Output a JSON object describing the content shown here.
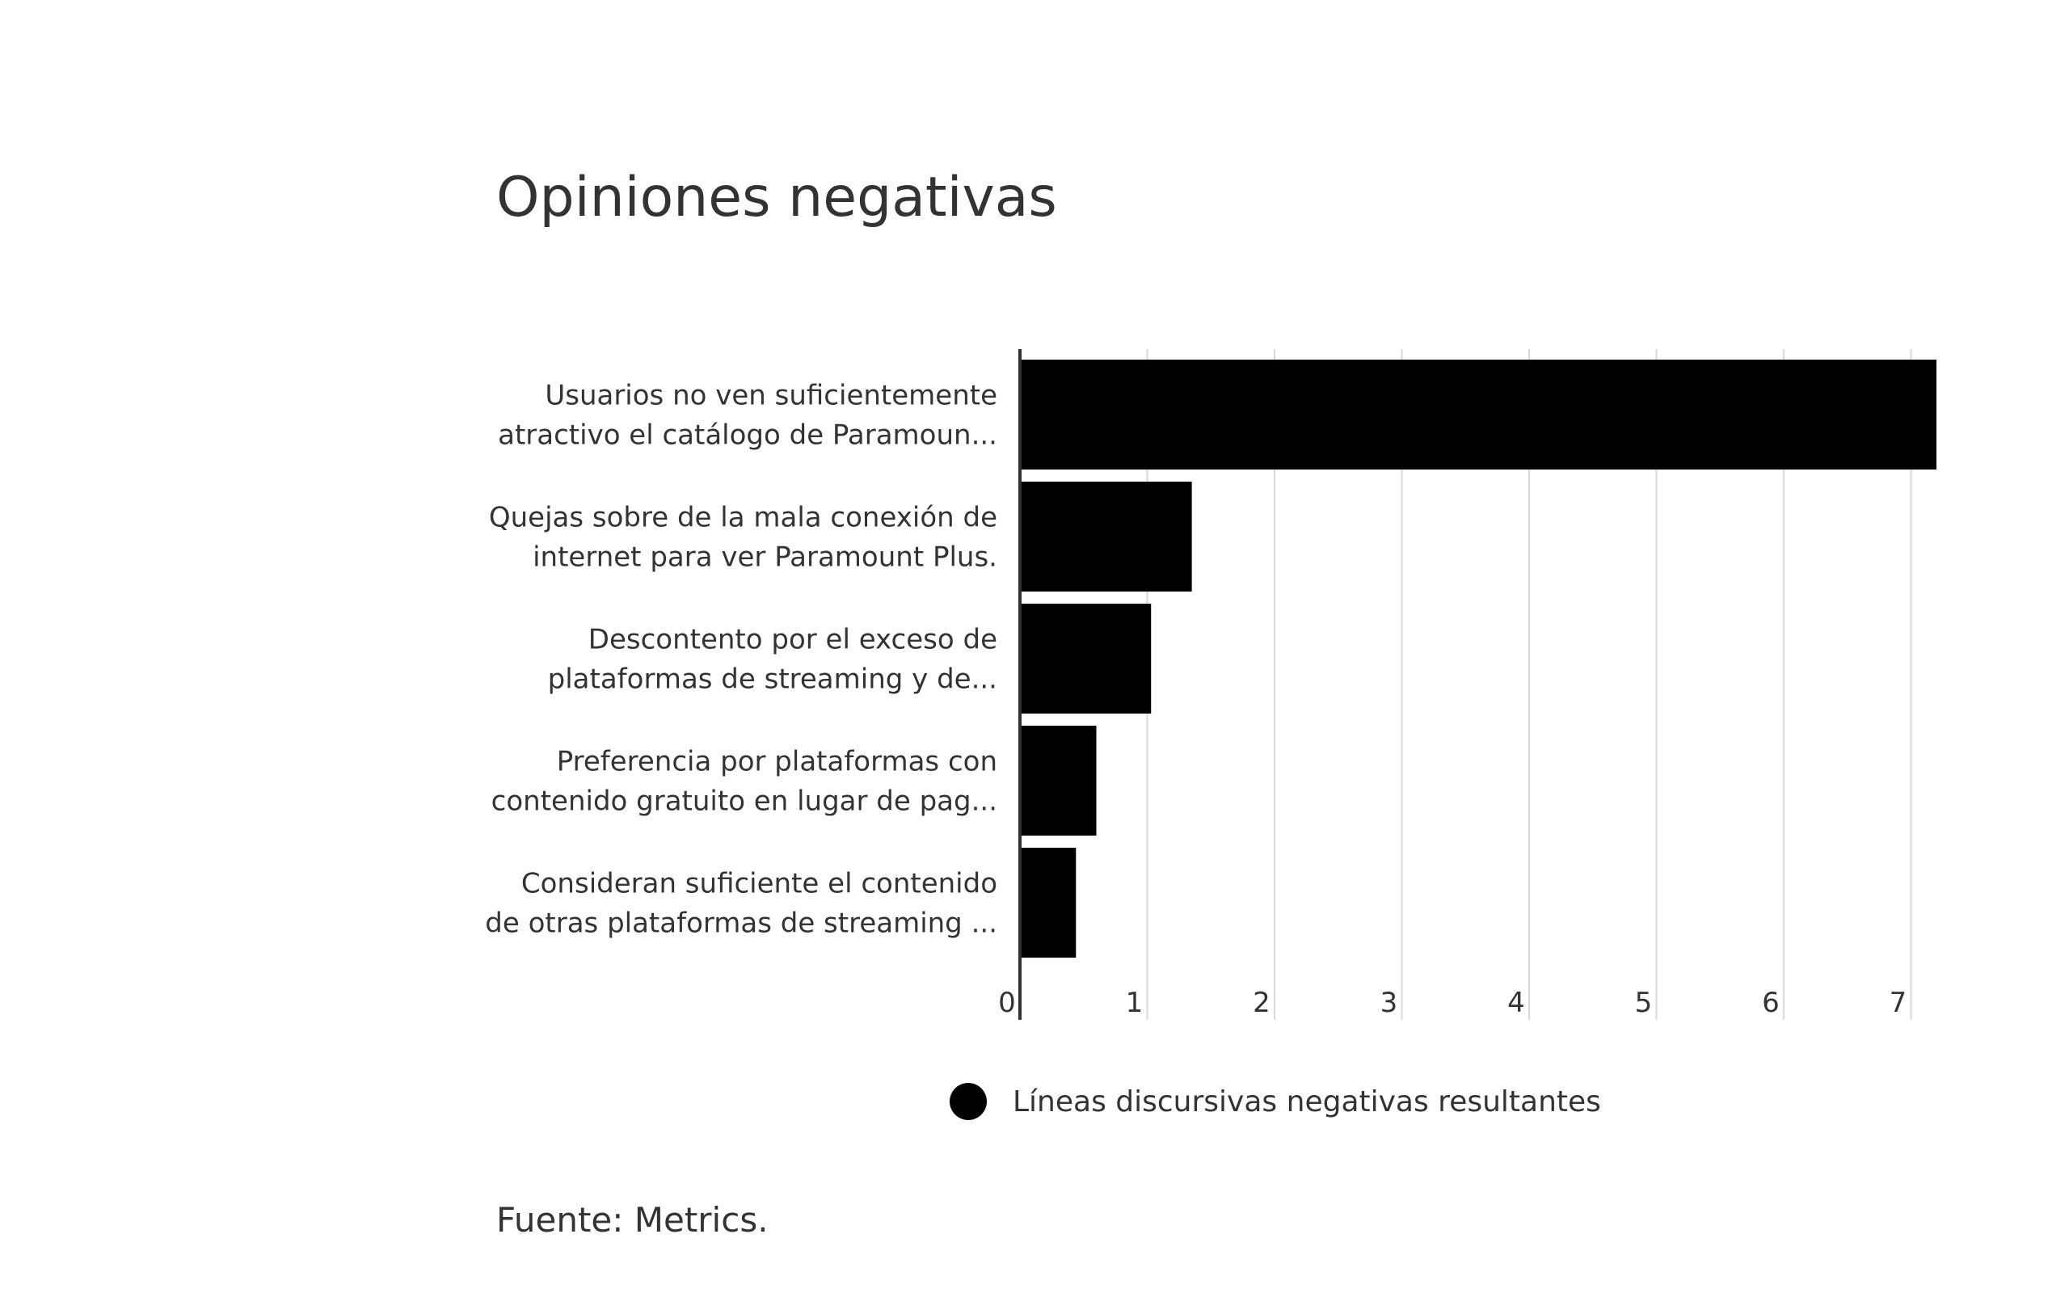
{
  "chart_data": {
    "type": "bar",
    "orientation": "horizontal",
    "title": "Opiniones negativas",
    "categories": [
      [
        "Usuarios no ven suficientemente",
        "atractivo el catálogo de Paramoun..."
      ],
      [
        "Quejas sobre de la mala conexión de",
        "internet para ver Paramount Plus."
      ],
      [
        "Descontento por el exceso de",
        "plataformas de streaming y de..."
      ],
      [
        "Preferencia por plataformas con",
        "contenido gratuito en lugar de pag..."
      ],
      [
        "Consideran suficiente el contenido",
        "de otras plataformas de streaming ..."
      ]
    ],
    "series": [
      {
        "name": "Líneas discursivas negativas resultantes",
        "values": [
          7.2,
          1.35,
          1.03,
          0.6,
          0.44
        ]
      }
    ],
    "xlim": [
      0,
      7.3
    ],
    "xticks": [
      "0",
      "1",
      "2",
      "3",
      "4",
      "5",
      "6",
      "7"
    ],
    "grid": true,
    "legend_position": "bottom"
  },
  "colors": {
    "bar": "#000000",
    "grid": "#d9d9d9",
    "axis": "#333333",
    "text": "#333333"
  },
  "source": "Fuente: Metrics."
}
